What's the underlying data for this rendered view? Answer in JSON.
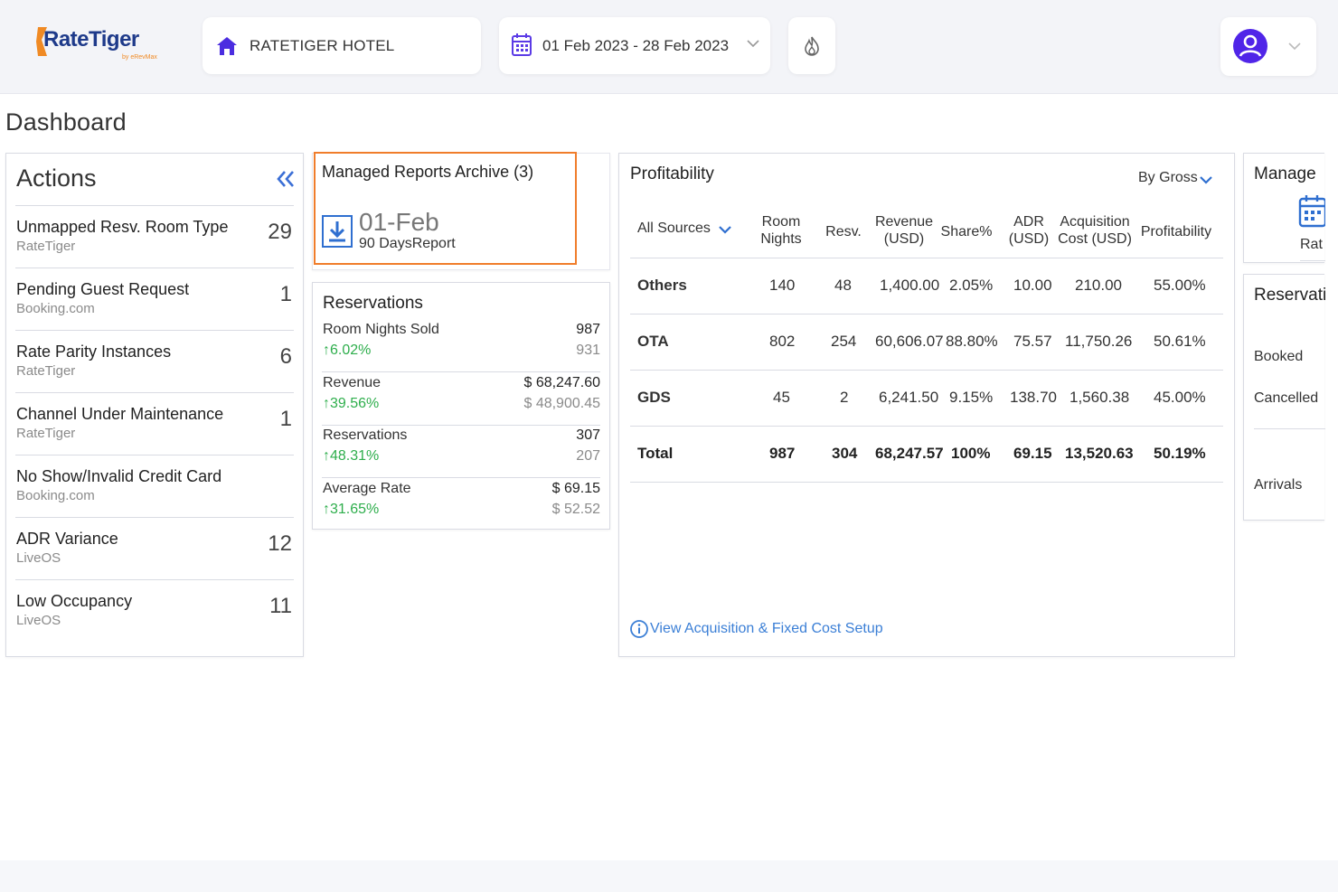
{
  "brand": {
    "name": "RateTiger",
    "tagline": "by eRevMax"
  },
  "header": {
    "hotel": "RATETIGER HOTEL",
    "date_range": "01 Feb 2023 - 28 Feb 2023"
  },
  "page_title": "Dashboard",
  "actions": {
    "title": "Actions",
    "items": [
      {
        "name": "Unmapped Resv. Room Type",
        "source": "RateTiger",
        "count": "29"
      },
      {
        "name": "Pending Guest Request",
        "source": "Booking.com",
        "count": "1"
      },
      {
        "name": "Rate Parity Instances",
        "source": "RateTiger",
        "count": "6"
      },
      {
        "name": "Channel Under Maintenance",
        "source": "RateTiger",
        "count": "1"
      },
      {
        "name": "No Show/Invalid Credit Card",
        "source": "Booking.com",
        "count": ""
      },
      {
        "name": "ADR Variance",
        "source": "LiveOS",
        "count": "12"
      },
      {
        "name": "Low Occupancy",
        "source": "LiveOS",
        "count": "11"
      }
    ]
  },
  "reports": {
    "title": "Managed Reports Archive (3)",
    "date": "01-Feb",
    "name": "90 DaysReport"
  },
  "reservations": {
    "title": "Reservations",
    "rows": [
      {
        "label": "Room Nights Sold",
        "change": "6.02%",
        "current": "987",
        "previous": "931"
      },
      {
        "label": "Revenue",
        "change": "39.56%",
        "current": "$ 68,247.60",
        "previous": "$ 48,900.45"
      },
      {
        "label": "Reservations",
        "change": "48.31%",
        "current": "307",
        "previous": "207"
      },
      {
        "label": "Average Rate",
        "change": "31.65%",
        "current": "$ 69.15",
        "previous": "$ 52.52"
      }
    ]
  },
  "profitability": {
    "title": "Profitability",
    "mode": "By Gross",
    "source_filter": "All Sources",
    "headers": {
      "room_nights_1": "Room",
      "room_nights_2": "Nights",
      "resv": "Resv.",
      "revenue_1": "Revenue",
      "revenue_2": "(USD)",
      "share": "Share%",
      "adr_1": "ADR",
      "adr_2": "(USD)",
      "acq_1": "Acquisition",
      "acq_2": "Cost (USD)",
      "profit": "Profitability"
    },
    "rows": [
      {
        "source": "Others",
        "room_nights": "140",
        "resv": "48",
        "revenue": "1,400.00",
        "share": "2.05%",
        "adr": "10.00",
        "acq_cost": "210.00",
        "profitability": "55.00%"
      },
      {
        "source": "OTA",
        "room_nights": "802",
        "resv": "254",
        "revenue": "60,606.07",
        "share": "88.80%",
        "adr": "75.57",
        "acq_cost": "11,750.26",
        "profitability": "50.61%"
      },
      {
        "source": "GDS",
        "room_nights": "45",
        "resv": "2",
        "revenue": "6,241.50",
        "share": "9.15%",
        "adr": "138.70",
        "acq_cost": "1,560.38",
        "profitability": "45.00%"
      },
      {
        "source": "Total",
        "room_nights": "987",
        "resv": "304",
        "revenue": "68,247.57",
        "share": "100%",
        "adr": "69.15",
        "acq_cost": "13,520.63",
        "profitability": "50.19%"
      }
    ],
    "link": "View Acquisition & Fixed Cost Setup"
  },
  "manage": {
    "title": "Manage",
    "item": "Rat"
  },
  "reservations_side": {
    "title": "Reservati",
    "items": [
      "Booked",
      "Cancelled",
      "Arrivals"
    ]
  },
  "colors": {
    "accent": "#4b2de0",
    "brand_orange": "#f07d2b",
    "positive": "#2eae4c",
    "link": "#3b7fd6"
  }
}
